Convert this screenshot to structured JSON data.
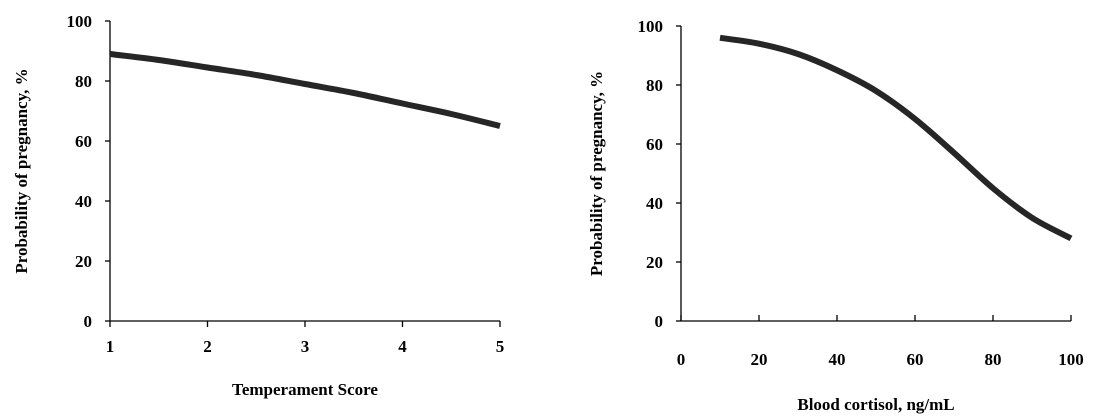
{
  "chart_data": [
    {
      "type": "line",
      "title": "",
      "xlabel": "Temperament Score",
      "ylabel": "Probability of pregnancy, %",
      "xlim": [
        1,
        5
      ],
      "ylim": [
        0,
        100
      ],
      "x_ticks": [
        1,
        2,
        3,
        4,
        5
      ],
      "y_ticks": [
        0,
        20,
        40,
        60,
        80,
        100
      ],
      "grid": false,
      "legend": "none",
      "series_color": "#262626",
      "series": [
        {
          "x": [
            1,
            1.5,
            2,
            2.5,
            3,
            3.5,
            4,
            4.5,
            5
          ],
          "values": [
            89,
            87,
            84.5,
            82,
            79,
            76,
            72.5,
            69,
            65
          ]
        }
      ]
    },
    {
      "type": "line",
      "title": "",
      "xlabel": "Blood cortisol, ng/mL",
      "ylabel": "Probability of pregnancy, %",
      "xlim": [
        0,
        100
      ],
      "ylim": [
        0,
        100
      ],
      "x_ticks": [
        0,
        20,
        40,
        60,
        80,
        100
      ],
      "y_ticks": [
        0,
        20,
        40,
        60,
        80,
        100
      ],
      "grid": false,
      "legend": "none",
      "series_color": "#262626",
      "series": [
        {
          "x": [
            10,
            20,
            30,
            40,
            50,
            60,
            70,
            80,
            90,
            100
          ],
          "values": [
            96,
            94,
            90.5,
            85,
            78,
            68.5,
            57,
            45,
            35,
            28
          ]
        }
      ]
    }
  ]
}
